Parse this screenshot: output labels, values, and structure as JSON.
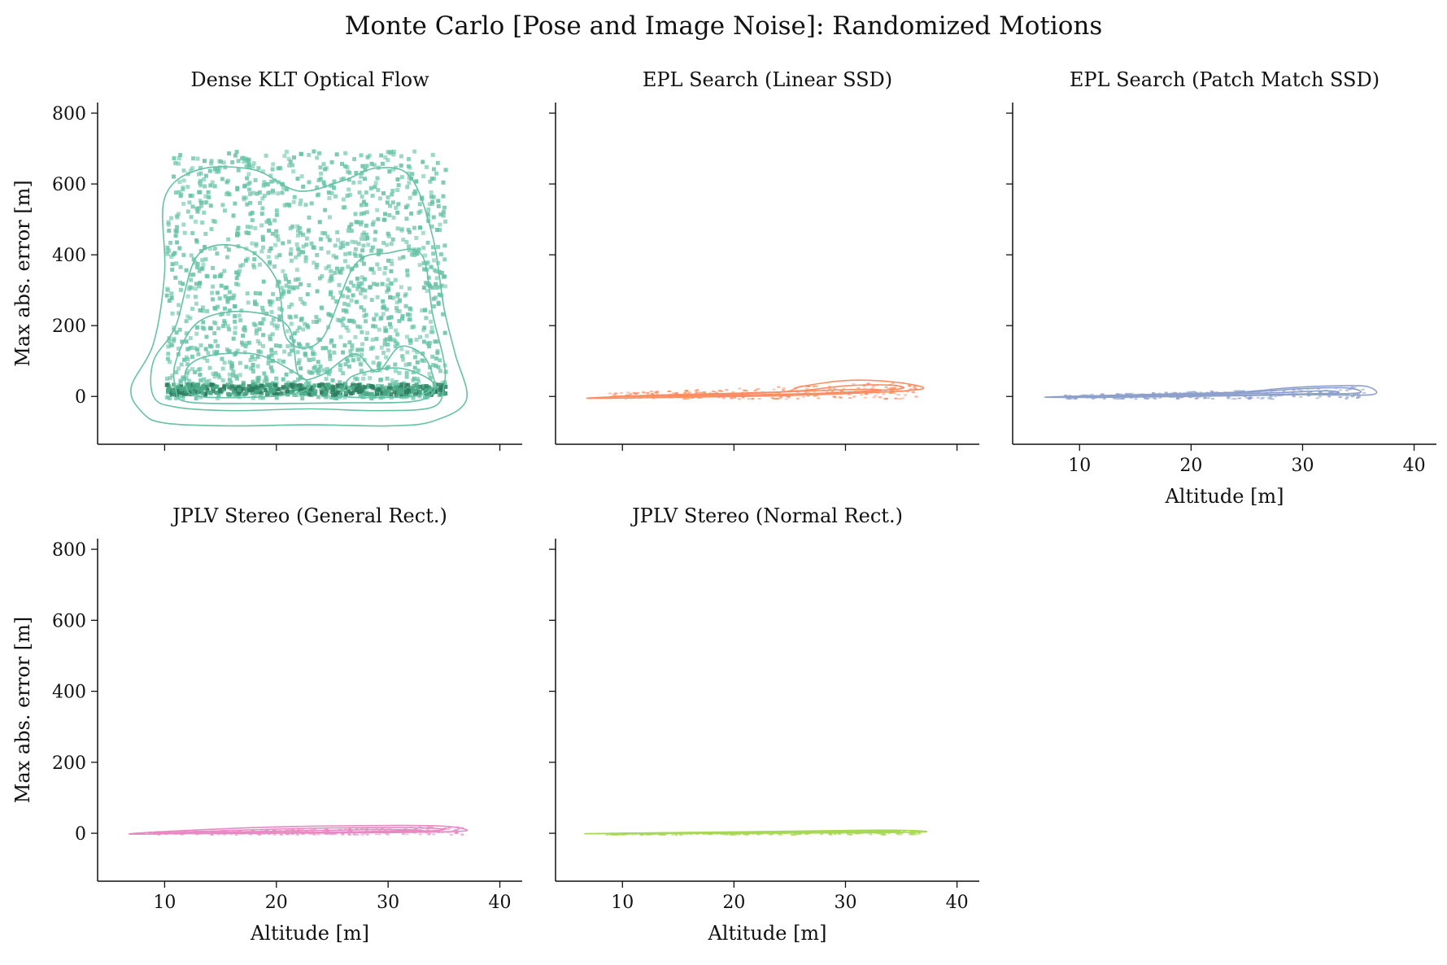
{
  "title": "Monte Carlo [Pose and Image Noise]: Randomized Motions",
  "chart_data": [
    {
      "type": "scatter",
      "subtype": "2d-histogram with KDE contours",
      "title": "Dense KLT Optical Flow",
      "color": "#66c2a5",
      "xlabel": "",
      "ylabel": "Max abs. error [m]",
      "xlim": [
        4,
        42
      ],
      "ylim": [
        -135,
        830
      ],
      "xticks": [
        10,
        20,
        30,
        40
      ],
      "yticks": [
        0,
        200,
        400,
        600,
        800
      ],
      "x_data_range": [
        10,
        35
      ],
      "y_data_range": [
        0,
        700
      ],
      "dense_band": {
        "x": [
          10,
          35
        ],
        "y": [
          10,
          40
        ]
      },
      "contours": [
        [
          [
            10,
            -75
          ],
          [
            16,
            -83
          ],
          [
            23,
            -80
          ],
          [
            30,
            -83
          ],
          [
            34,
            -70
          ],
          [
            37,
            -10
          ],
          [
            36,
            120
          ],
          [
            35,
            250
          ],
          [
            34,
            450
          ],
          [
            32,
            620
          ],
          [
            29,
            645
          ],
          [
            26,
            610
          ],
          [
            22,
            580
          ],
          [
            18,
            640
          ],
          [
            13,
            640
          ],
          [
            10,
            560
          ],
          [
            10,
            350
          ],
          [
            9,
            150
          ],
          [
            7,
            25
          ],
          [
            8,
            -45
          ]
        ],
        [
          [
            11,
            -30
          ],
          [
            16,
            -40
          ],
          [
            23,
            -35
          ],
          [
            29,
            -40
          ],
          [
            34,
            -30
          ],
          [
            35,
            30
          ],
          [
            35,
            100
          ],
          [
            34,
            230
          ],
          [
            33,
            400
          ],
          [
            30,
            405
          ],
          [
            27,
            370
          ],
          [
            24,
            160
          ],
          [
            21,
            160
          ],
          [
            20,
            330
          ],
          [
            17,
            420
          ],
          [
            13,
            400
          ],
          [
            11,
            200
          ],
          [
            9,
            100
          ],
          [
            9,
            0
          ]
        ],
        [
          [
            12,
            -15
          ],
          [
            18,
            -20
          ],
          [
            26,
            -18
          ],
          [
            32,
            -15
          ],
          [
            34,
            10
          ],
          [
            34,
            60
          ],
          [
            33,
            120
          ],
          [
            31,
            140
          ],
          [
            29,
            70
          ],
          [
            27,
            120
          ],
          [
            24,
            60
          ],
          [
            22,
            60
          ],
          [
            21,
            200
          ],
          [
            17,
            240
          ],
          [
            13,
            210
          ],
          [
            11,
            100
          ],
          [
            11,
            20
          ]
        ],
        [
          [
            13,
            0
          ],
          [
            17,
            -3
          ],
          [
            21,
            5
          ],
          [
            23,
            30
          ],
          [
            21,
            80
          ],
          [
            18,
            120
          ],
          [
            14,
            115
          ],
          [
            12,
            80
          ],
          [
            12,
            20
          ]
        ],
        [
          [
            26,
            0
          ],
          [
            30,
            -3
          ],
          [
            33,
            5
          ],
          [
            34,
            40
          ],
          [
            31,
            80
          ],
          [
            27,
            60
          ],
          [
            26,
            20
          ]
        ]
      ]
    },
    {
      "type": "scatter",
      "subtype": "2d-histogram with KDE contours",
      "title": "EPL Search (Linear SSD)",
      "color": "#fc8d62",
      "xlabel": "",
      "ylabel": "",
      "xlim": [
        4,
        42
      ],
      "ylim": [
        -135,
        830
      ],
      "xticks": [
        10,
        20,
        30,
        40
      ],
      "yticks": [
        0,
        200,
        400,
        600,
        800
      ],
      "x_data_range": [
        7,
        37
      ],
      "y_data_range": [
        -5,
        45
      ],
      "contours": [
        [
          [
            6.8,
            -5
          ],
          [
            15,
            5
          ],
          [
            24,
            12
          ],
          [
            26,
            28
          ],
          [
            30,
            45
          ],
          [
            34,
            42
          ],
          [
            37,
            25
          ],
          [
            35,
            15
          ],
          [
            30,
            8
          ],
          [
            24,
            2
          ],
          [
            14,
            -3
          ]
        ],
        [
          [
            9,
            0
          ],
          [
            16,
            6
          ],
          [
            25,
            14
          ],
          [
            30,
            30
          ],
          [
            34,
            32
          ],
          [
            35,
            22
          ],
          [
            30,
            12
          ],
          [
            24,
            5
          ],
          [
            15,
            1
          ]
        ],
        [
          [
            12,
            2
          ],
          [
            20,
            7
          ],
          [
            27,
            16
          ],
          [
            32,
            20
          ],
          [
            33,
            16
          ],
          [
            28,
            9
          ],
          [
            20,
            4
          ]
        ]
      ]
    },
    {
      "type": "scatter",
      "subtype": "2d-histogram with KDE contours",
      "title": "EPL Search (Patch Match SSD)",
      "color": "#8da0cb",
      "xlabel": "Altitude [m]",
      "ylabel": "",
      "xlim": [
        4,
        42
      ],
      "ylim": [
        -135,
        830
      ],
      "xticks": [
        10,
        20,
        30,
        40
      ],
      "yticks": [
        0,
        200,
        400,
        600,
        800
      ],
      "x_data_range": [
        7,
        36
      ],
      "y_data_range": [
        -5,
        30
      ],
      "contours": [
        [
          [
            6.9,
            -2
          ],
          [
            15,
            5
          ],
          [
            24,
            12
          ],
          [
            29,
            25
          ],
          [
            33,
            30
          ],
          [
            35.8,
            28
          ],
          [
            36.2,
            5
          ],
          [
            30,
            5
          ],
          [
            24,
            2
          ],
          [
            14,
            -2
          ]
        ],
        [
          [
            9,
            0
          ],
          [
            17,
            5
          ],
          [
            25,
            12
          ],
          [
            30,
            22
          ],
          [
            34,
            24
          ],
          [
            35,
            10
          ],
          [
            30,
            6
          ],
          [
            24,
            3
          ],
          [
            16,
            0
          ]
        ],
        [
          [
            12,
            1
          ],
          [
            20,
            5
          ],
          [
            27,
            10
          ],
          [
            32,
            16
          ],
          [
            33,
            10
          ],
          [
            28,
            6
          ],
          [
            20,
            2
          ]
        ]
      ]
    },
    {
      "type": "scatter",
      "subtype": "2d-histogram with KDE contours",
      "title": "JPLV Stereo (General Rect.)",
      "color": "#e78ac3",
      "xlabel": "Altitude [m]",
      "ylabel": "Max abs. error [m]",
      "xlim": [
        4,
        42
      ],
      "ylim": [
        -135,
        830
      ],
      "xticks": [
        10,
        20,
        30,
        40
      ],
      "yticks": [
        0,
        200,
        400,
        600,
        800
      ],
      "x_data_range": [
        7,
        37
      ],
      "y_data_range": [
        -2,
        22
      ],
      "contours": [
        [
          [
            6.8,
            -2
          ],
          [
            12,
            8
          ],
          [
            20,
            18
          ],
          [
            30,
            22
          ],
          [
            35,
            20
          ],
          [
            37,
            10
          ],
          [
            36,
            5
          ],
          [
            30,
            2
          ],
          [
            20,
            0
          ],
          [
            12,
            -1
          ]
        ],
        [
          [
            9,
            0
          ],
          [
            15,
            7
          ],
          [
            23,
            14
          ],
          [
            31,
            16
          ],
          [
            35,
            12
          ],
          [
            33,
            6
          ],
          [
            25,
            3
          ],
          [
            15,
            1
          ]
        ],
        [
          [
            12,
            1
          ],
          [
            20,
            6
          ],
          [
            28,
            10
          ],
          [
            33,
            9
          ],
          [
            29,
            5
          ],
          [
            20,
            2
          ]
        ]
      ]
    },
    {
      "type": "scatter",
      "subtype": "2d-histogram with KDE contours",
      "title": "JPLV Stereo (Normal Rect.)",
      "color": "#a6d854",
      "xlabel": "Altitude [m]",
      "ylabel": "",
      "xlim": [
        4,
        42
      ],
      "ylim": [
        -135,
        830
      ],
      "xticks": [
        10,
        20,
        30,
        40
      ],
      "yticks": [
        0,
        200,
        400,
        600,
        800
      ],
      "x_data_range": [
        7,
        37
      ],
      "y_data_range": [
        -2,
        10
      ],
      "contours": [
        [
          [
            6.8,
            -1
          ],
          [
            15,
            2
          ],
          [
            25,
            6
          ],
          [
            33,
            9
          ],
          [
            37,
            6
          ],
          [
            36,
            3
          ],
          [
            28,
            1
          ],
          [
            18,
            0
          ],
          [
            10,
            -1
          ]
        ],
        [
          [
            10,
            0
          ],
          [
            18,
            2
          ],
          [
            27,
            4
          ],
          [
            34,
            6
          ],
          [
            34,
            3
          ],
          [
            26,
            1
          ],
          [
            16,
            0
          ]
        ]
      ]
    }
  ]
}
